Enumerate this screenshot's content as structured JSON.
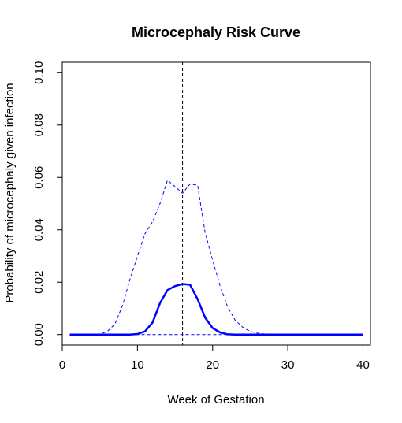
{
  "chart_data": {
    "type": "line",
    "title": "Microcephaly Risk Curve",
    "xlabel": "Week of Gestation",
    "ylabel": "Probability of microcephaly given infection",
    "xlim": [
      0,
      41
    ],
    "ylim": [
      -0.004,
      0.104
    ],
    "xticks": [
      "0",
      "10",
      "20",
      "30",
      "40"
    ],
    "yticks": [
      "0.00",
      "0.02",
      "0.04",
      "0.06",
      "0.08",
      "0.10"
    ],
    "grid": false,
    "legend": "none",
    "reference_lines": {
      "vertical_x": 16,
      "horizontal_y": 0
    },
    "series": [
      {
        "style": "solid",
        "color": "#0000ff",
        "x": [
          1,
          2,
          3,
          4,
          5,
          6,
          7,
          8,
          9,
          10,
          11,
          12,
          13,
          14,
          15,
          16,
          17,
          18,
          19,
          20,
          21,
          22,
          23,
          24,
          25,
          26,
          27,
          28,
          29,
          30,
          31,
          32,
          33,
          34,
          35,
          36,
          37,
          38,
          39,
          40
        ],
        "y": [
          0,
          0,
          0,
          0,
          0,
          0,
          0,
          0,
          0,
          0.0002,
          0.0012,
          0.0045,
          0.012,
          0.017,
          0.0185,
          0.0193,
          0.019,
          0.0135,
          0.0065,
          0.0025,
          0.0008,
          0.0001,
          0,
          0,
          0,
          0,
          0,
          0,
          0,
          0,
          0,
          0,
          0,
          0,
          0,
          0,
          0,
          0,
          0,
          0
        ]
      },
      {
        "style": "dashed",
        "color": "#0000ff",
        "x": [
          1,
          2,
          3,
          4,
          5,
          6,
          7,
          8,
          9,
          10,
          11,
          12,
          13,
          14,
          15,
          16,
          17,
          18,
          19,
          20,
          21,
          22,
          23,
          24,
          25,
          26,
          27,
          28,
          29,
          30,
          31,
          32,
          33,
          34,
          35,
          36,
          37,
          38,
          39,
          40
        ],
        "y": [
          0,
          0,
          0,
          0,
          0.0001,
          0.0012,
          0.004,
          0.011,
          0.021,
          0.03,
          0.0385,
          0.043,
          0.05,
          0.059,
          0.0565,
          0.054,
          0.0575,
          0.057,
          0.039,
          0.0285,
          0.0185,
          0.0105,
          0.0055,
          0.0028,
          0.0012,
          0.0005,
          0.0002,
          0.0001,
          0,
          0,
          0,
          0,
          0,
          0,
          0,
          0,
          0,
          0,
          0,
          0
        ]
      }
    ]
  }
}
